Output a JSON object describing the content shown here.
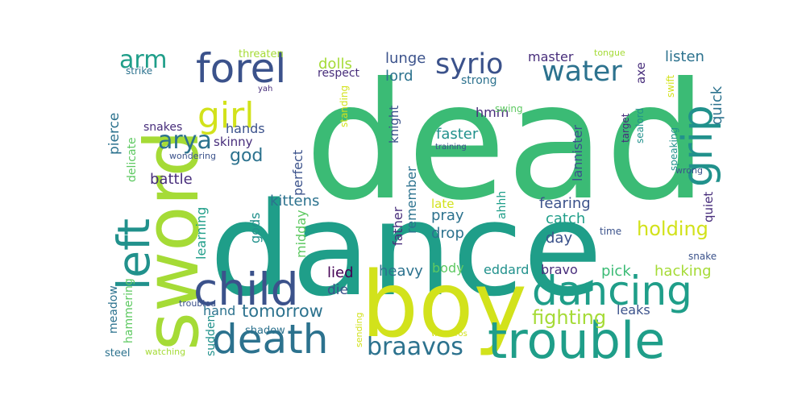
{
  "palette": {
    "yellow": "#d2e21b",
    "lime": "#a5db36",
    "green": "#5ec962",
    "mint": "#3bbb75",
    "teal": "#21918c",
    "sea": "#1f9e89",
    "blue": "#2c728e",
    "slate": "#3b528b",
    "indigo": "#472d7b",
    "purple": "#440154"
  },
  "words": [
    {
      "text": "dead",
      "color": "mint"
    },
    {
      "text": "dance",
      "color": "sea"
    },
    {
      "text": "sword",
      "color": "lime"
    },
    {
      "text": "boy",
      "color": "yellow"
    },
    {
      "text": "trouble",
      "color": "sea"
    },
    {
      "text": "child",
      "color": "slate"
    },
    {
      "text": "death",
      "color": "blue"
    },
    {
      "text": "dancing",
      "color": "sea"
    },
    {
      "text": "forel",
      "color": "slate"
    },
    {
      "text": "girl",
      "color": "yellow"
    },
    {
      "text": "left",
      "color": "teal"
    },
    {
      "text": "grip",
      "color": "teal"
    },
    {
      "text": "syrio",
      "color": "slate"
    },
    {
      "text": "water",
      "color": "blue"
    },
    {
      "text": "braavos",
      "color": "blue"
    },
    {
      "text": "arya",
      "color": "blue"
    },
    {
      "text": "arm",
      "color": "sea"
    },
    {
      "text": "fighting",
      "color": "lime"
    },
    {
      "text": "holding",
      "color": "yellow"
    },
    {
      "text": "tomorrow",
      "color": "blue"
    },
    {
      "text": "hands",
      "color": "slate"
    },
    {
      "text": "god",
      "color": "blue"
    },
    {
      "text": "dolls",
      "color": "lime"
    },
    {
      "text": "lunge",
      "color": "slate"
    },
    {
      "text": "lord",
      "color": "blue"
    },
    {
      "text": "master",
      "color": "indigo"
    },
    {
      "text": "listen",
      "color": "blue"
    },
    {
      "text": "quick",
      "color": "blue"
    },
    {
      "text": "faster",
      "color": "teal"
    },
    {
      "text": "kittens",
      "color": "blue"
    },
    {
      "text": "battle",
      "color": "indigo"
    },
    {
      "text": "fearing",
      "color": "slate"
    },
    {
      "text": "catch",
      "color": "sea"
    },
    {
      "text": "day",
      "color": "slate"
    },
    {
      "text": "pray",
      "color": "blue"
    },
    {
      "text": "drop",
      "color": "blue"
    },
    {
      "text": "late",
      "color": "yellow"
    },
    {
      "text": "hacking",
      "color": "lime"
    },
    {
      "text": "pick",
      "color": "mint"
    },
    {
      "text": "heavy",
      "color": "blue"
    },
    {
      "text": "lied",
      "color": "purple"
    },
    {
      "text": "die",
      "color": "slate"
    },
    {
      "text": "body",
      "color": "green"
    },
    {
      "text": "eddard",
      "color": "teal"
    },
    {
      "text": "bravo",
      "color": "indigo"
    },
    {
      "text": "leaks",
      "color": "slate"
    },
    {
      "text": "hand",
      "color": "blue"
    },
    {
      "text": "perfect",
      "color": "slate"
    },
    {
      "text": "skinny",
      "color": "indigo"
    },
    {
      "text": "snakes",
      "color": "indigo"
    },
    {
      "text": "pierce",
      "color": "blue"
    },
    {
      "text": "delicate",
      "color": "green"
    },
    {
      "text": "learning",
      "color": "sea"
    },
    {
      "text": "gods",
      "color": "teal"
    },
    {
      "text": "midday",
      "color": "green"
    },
    {
      "text": "father",
      "color": "indigo"
    },
    {
      "text": "remember",
      "color": "blue"
    },
    {
      "text": "ahhh",
      "color": "sea"
    },
    {
      "text": "knight",
      "color": "slate"
    },
    {
      "text": "hmm",
      "color": "indigo"
    },
    {
      "text": "lannister",
      "color": "slate"
    },
    {
      "text": "axe",
      "color": "indigo"
    },
    {
      "text": "quiet",
      "color": "indigo"
    },
    {
      "text": "meadow",
      "color": "blue"
    },
    {
      "text": "hammering",
      "color": "green"
    },
    {
      "text": "sudden",
      "color": "teal"
    },
    {
      "text": "shadow",
      "color": "blue"
    },
    {
      "text": "steel",
      "color": "blue"
    },
    {
      "text": "watching",
      "color": "lime"
    },
    {
      "text": "sending",
      "color": "yellow"
    },
    {
      "text": "westeros",
      "color": "yellow"
    },
    {
      "text": "troubled",
      "color": "slate"
    },
    {
      "text": "threaten",
      "color": "lime"
    },
    {
      "text": "strike",
      "color": "blue"
    },
    {
      "text": "respect",
      "color": "indigo"
    },
    {
      "text": "strong",
      "color": "blue"
    },
    {
      "text": "yah",
      "color": "indigo"
    },
    {
      "text": "wondering",
      "color": "slate"
    },
    {
      "text": "standing",
      "color": "yellow"
    },
    {
      "text": "training",
      "color": "slate"
    },
    {
      "text": "swing",
      "color": "green"
    },
    {
      "text": "tongue",
      "color": "lime"
    },
    {
      "text": "target",
      "color": "indigo"
    },
    {
      "text": "sealord",
      "color": "teal"
    },
    {
      "text": "speaking",
      "color": "teal"
    },
    {
      "text": "swift",
      "color": "yellow"
    },
    {
      "text": "wrong",
      "color": "slate"
    },
    {
      "text": "time",
      "color": "slate"
    },
    {
      "text": "snake",
      "color": "slate"
    }
  ]
}
